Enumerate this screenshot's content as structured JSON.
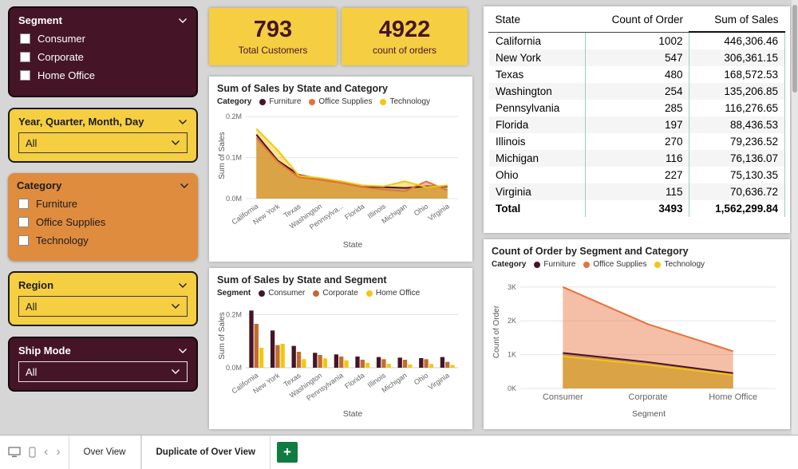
{
  "colors": {
    "maroon": "#451527",
    "yellow": "#F5CE42",
    "orange": "#DF8C3F",
    "plus_green": "#107C41",
    "table_grid": "#99CFC7"
  },
  "slicers": [
    {
      "id": "segment",
      "title": "Segment",
      "type": "checkbox",
      "theme": "dark",
      "options": [
        "Consumer",
        "Corporate",
        "Home Office"
      ]
    },
    {
      "id": "date",
      "title": "Year, Quarter, Month, Day",
      "type": "dropdown",
      "theme": "yellow",
      "value": "All"
    },
    {
      "id": "category",
      "title": "Category",
      "type": "checkbox",
      "theme": "orange",
      "options": [
        "Furniture",
        "Office Supplies",
        "Technology"
      ]
    },
    {
      "id": "region",
      "title": "Region",
      "type": "dropdown",
      "theme": "yellow",
      "value": "All"
    },
    {
      "id": "ship-mode",
      "title": "Ship Mode",
      "type": "dropdown",
      "theme": "dark",
      "value": "All"
    }
  ],
  "cards": [
    {
      "value": "793",
      "label": "Total Customers"
    },
    {
      "value": "4922",
      "label": "count of orders"
    }
  ],
  "table": {
    "columns": [
      "State",
      "Count of Order",
      "Sum of Sales"
    ],
    "rows": [
      [
        "California",
        "1002",
        "446,306.46"
      ],
      [
        "New York",
        "547",
        "306,361.15"
      ],
      [
        "Texas",
        "480",
        "168,572.53"
      ],
      [
        "Washington",
        "254",
        "135,206.85"
      ],
      [
        "Pennsylvania",
        "285",
        "116,276.65"
      ],
      [
        "Florida",
        "197",
        "88,436.53"
      ],
      [
        "Illinois",
        "270",
        "79,236.52"
      ],
      [
        "Michigan",
        "116",
        "76,136.07"
      ],
      [
        "Ohio",
        "227",
        "75,130.35"
      ],
      [
        "Virginia",
        "115",
        "70,636.72"
      ]
    ],
    "total": [
      "Total",
      "3493",
      "1,562,299.84"
    ]
  },
  "tabbar": {
    "prev_icon": "‹",
    "next_icon": "›",
    "add_label": "+",
    "tabs": [
      {
        "label": "Over View",
        "active": false
      },
      {
        "label": "Duplicate of Over View",
        "active": true
      }
    ]
  },
  "chart_data": [
    {
      "id": "sales_by_state_and_category",
      "type": "area",
      "title": "Sum of Sales by State and Category",
      "legend_title": "Category",
      "categories": [
        "California",
        "New York",
        "Texas",
        "Washington",
        "Pennsylva...",
        "Florida",
        "Illinois",
        "Michigan",
        "Ohio",
        "Virginia"
      ],
      "series": [
        {
          "name": "Furniture",
          "color": "#451527",
          "values": [
            0.156,
            0.093,
            0.058,
            0.048,
            0.04,
            0.03,
            0.028,
            0.026,
            0.03,
            0.03
          ]
        },
        {
          "name": "Office Supplies",
          "color": "#E8713C",
          "values": [
            0.148,
            0.09,
            0.052,
            0.046,
            0.038,
            0.028,
            0.022,
            0.018,
            0.042,
            0.02
          ]
        },
        {
          "name": "Technology",
          "color": "#F2C80F",
          "values": [
            0.17,
            0.118,
            0.056,
            0.05,
            0.042,
            0.032,
            0.03,
            0.042,
            0.028,
            0.032
          ]
        }
      ],
      "ylim": [
        0,
        0.21
      ],
      "yticks": [
        {
          "v": 0,
          "label": "0.0M"
        },
        {
          "v": 0.1,
          "label": "0.1M"
        },
        {
          "v": 0.2,
          "label": "0.2M"
        }
      ],
      "xlabel": "State",
      "ylabel": "Sum of Sales"
    },
    {
      "id": "sales_by_state_and_segment",
      "type": "bar",
      "title": "Sum of Sales by State and Segment",
      "legend_title": "Segment",
      "categories": [
        "California",
        "New York",
        "Texas",
        "Washington",
        "Pennsylvania",
        "Florida",
        "Illinois",
        "Michigan",
        "Ohio",
        "Virginia"
      ],
      "series": [
        {
          "name": "Consumer",
          "color": "#451527",
          "values": [
            0.215,
            0.14,
            0.082,
            0.056,
            0.05,
            0.042,
            0.04,
            0.038,
            0.036,
            0.04
          ]
        },
        {
          "name": "Corporate",
          "color": "#C26B2F",
          "values": [
            0.165,
            0.085,
            0.06,
            0.048,
            0.042,
            0.03,
            0.032,
            0.03,
            0.032,
            0.022
          ]
        },
        {
          "name": "Home Office",
          "color": "#F2C80F",
          "values": [
            0.075,
            0.09,
            0.032,
            0.035,
            0.028,
            0.018,
            0.015,
            0.012,
            0.014,
            0.01
          ]
        }
      ],
      "ylim": [
        0,
        0.24
      ],
      "yticks": [
        {
          "v": 0,
          "label": "0.0M"
        },
        {
          "v": 0.2,
          "label": "0.2M"
        }
      ],
      "xlabel": "State",
      "ylabel": "Sum of Sales"
    },
    {
      "id": "orders_by_segment_and_category",
      "type": "area",
      "title": "Count of Order by Segment and Category",
      "legend_title": "Category",
      "categories": [
        "Consumer",
        "Corporate",
        "Home Office"
      ],
      "series": [
        {
          "name": "Furniture",
          "color": "#451527",
          "values": [
            1.05,
            0.78,
            0.45
          ]
        },
        {
          "name": "Office Supplies",
          "color": "#E8713C",
          "values": [
            3.0,
            1.9,
            1.1
          ]
        },
        {
          "name": "Technology",
          "color": "#F2C80F",
          "values": [
            0.95,
            0.7,
            0.4
          ]
        }
      ],
      "ylim": [
        0,
        3.35
      ],
      "yticks": [
        {
          "v": 0,
          "label": "0K"
        },
        {
          "v": 1,
          "label": "1K"
        },
        {
          "v": 2,
          "label": "2K"
        },
        {
          "v": 3,
          "label": "3K"
        }
      ],
      "xlabel": "Segment",
      "ylabel": "Count of Order"
    }
  ]
}
